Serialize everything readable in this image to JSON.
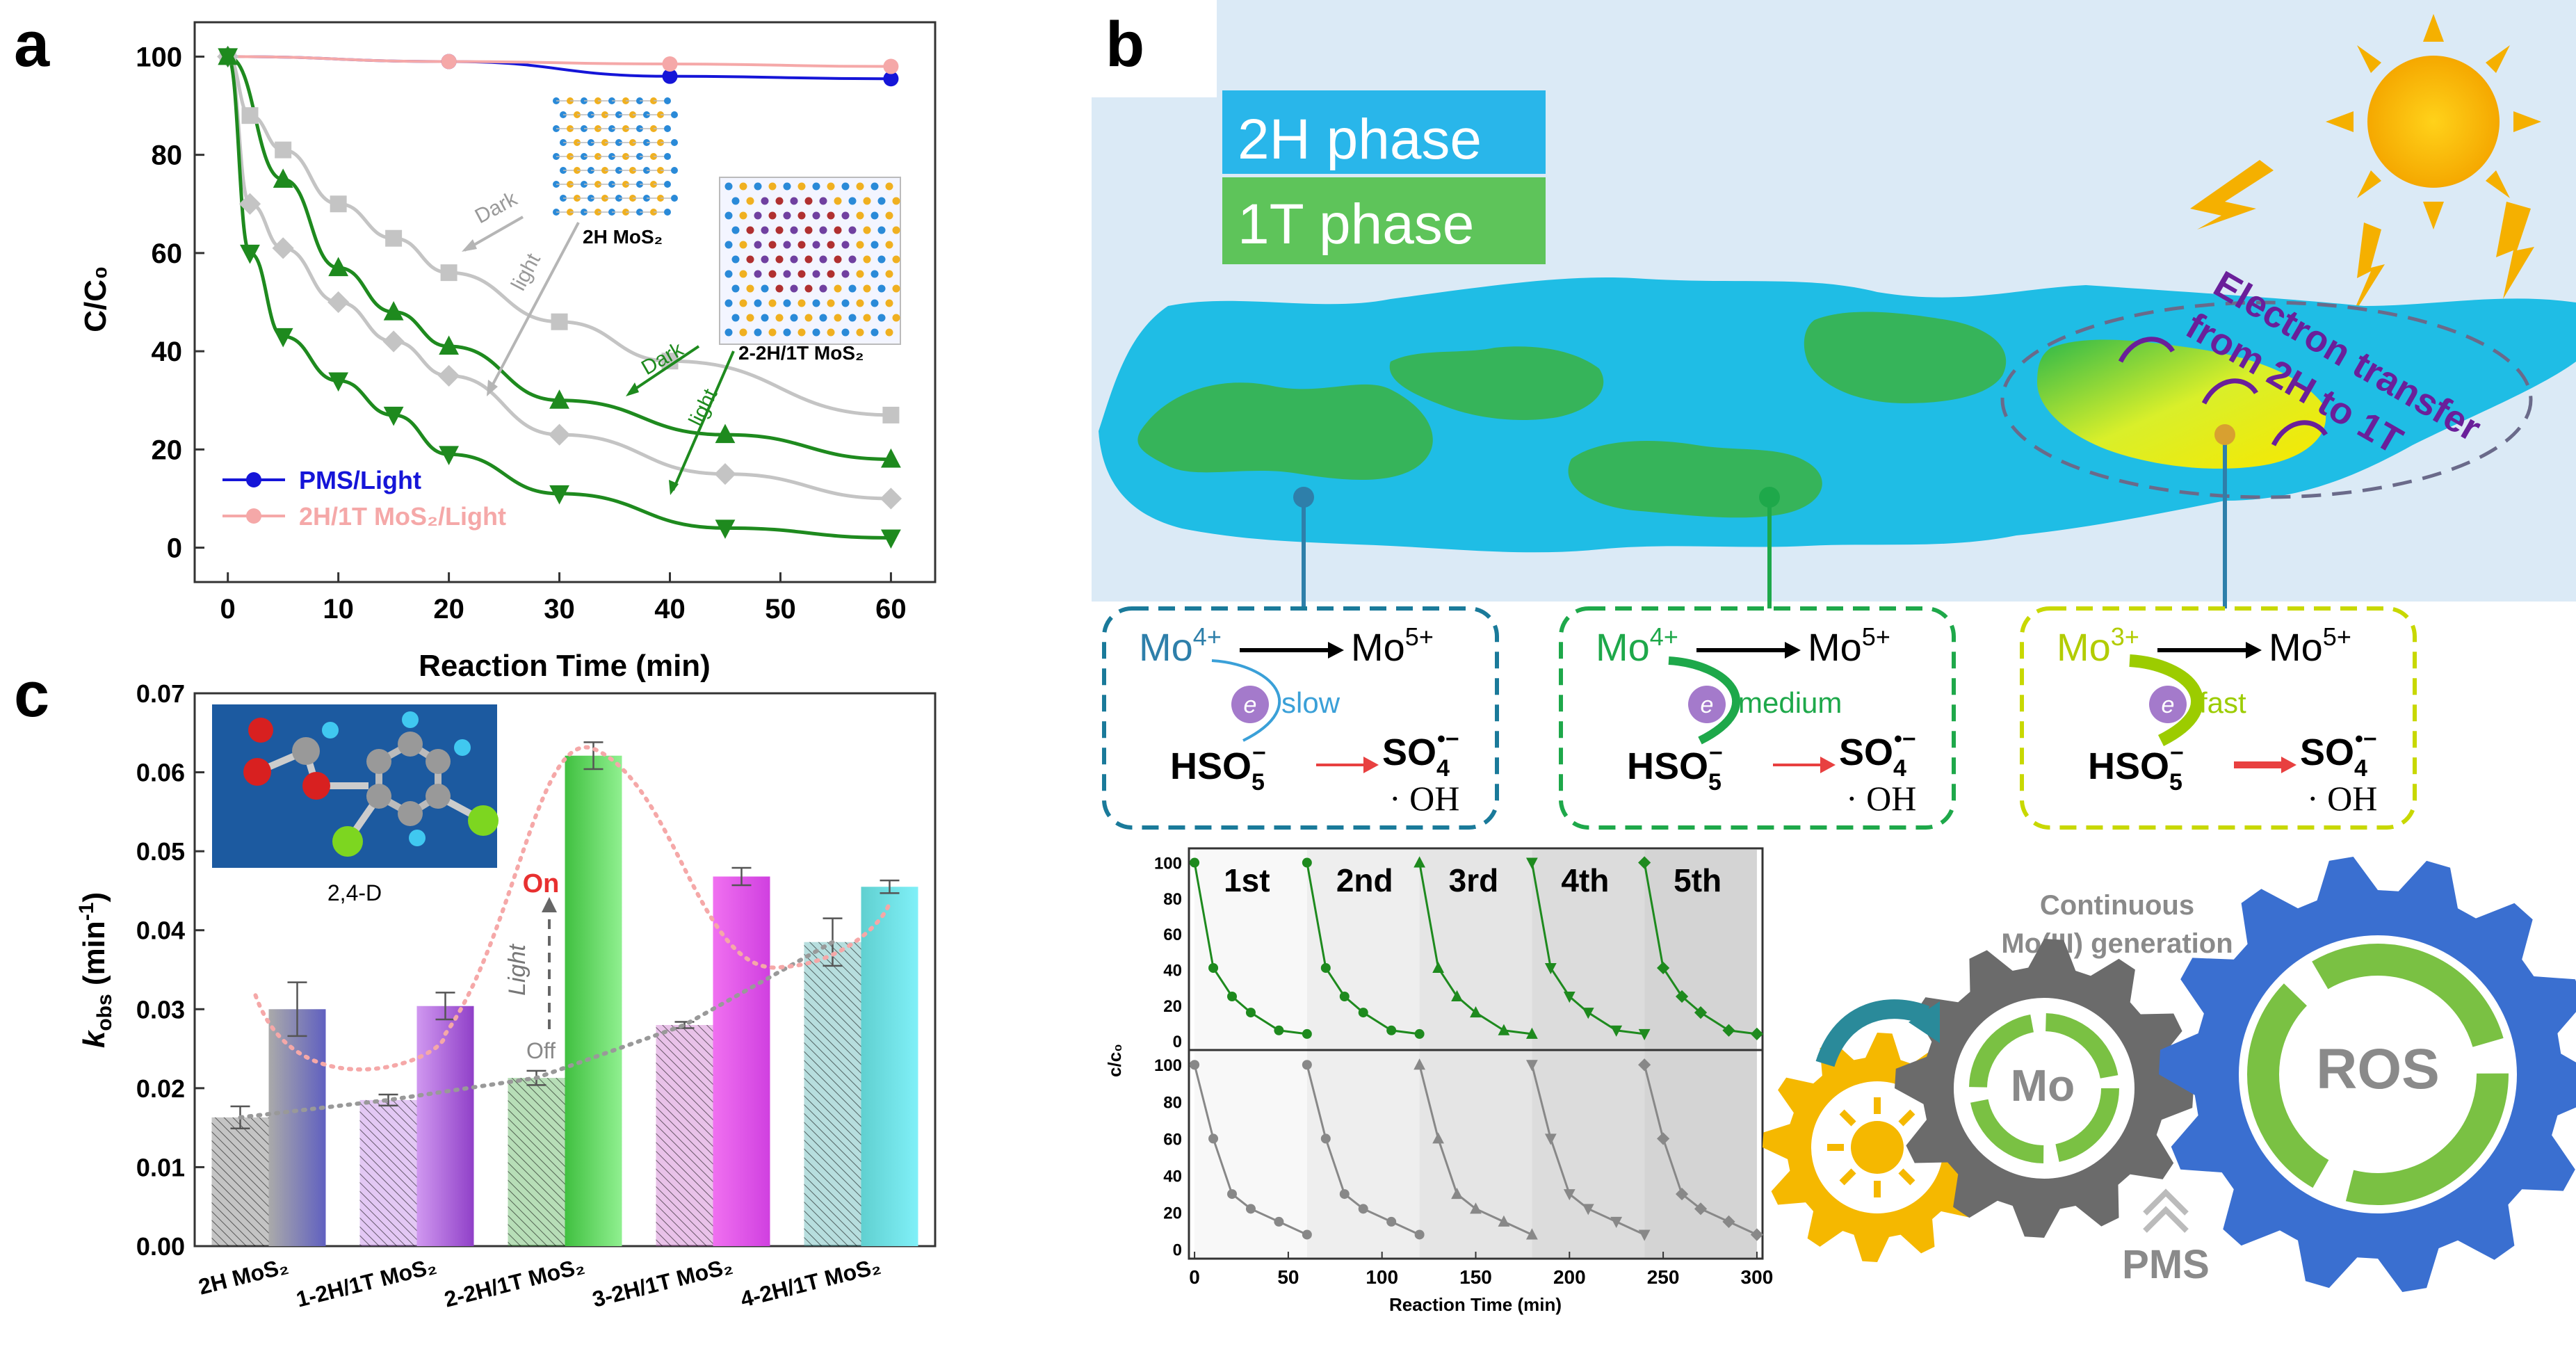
{
  "panels": {
    "a": "a",
    "b": "b",
    "c": "c"
  },
  "chart_data": [
    {
      "panel": "a",
      "type": "line",
      "xlabel": "Reaction Time (min)",
      "ylabel": "C/C₀",
      "xlim": [
        -3,
        64
      ],
      "ylim": [
        -7,
        107
      ],
      "xticks": [
        0,
        10,
        20,
        30,
        40,
        50,
        60
      ],
      "yticks": [
        0,
        20,
        40,
        60,
        80,
        100
      ],
      "series": [
        {
          "name": "PMS/Light",
          "color": "#1515d8",
          "marker": "circle",
          "x": [
            0,
            20,
            40,
            60
          ],
          "y": [
            100,
            99,
            96,
            95.5
          ]
        },
        {
          "name": "2H/1T MoS₂/Light",
          "color": "#f5a8a8",
          "marker": "circle",
          "x": [
            0,
            20,
            40,
            60
          ],
          "y": [
            100,
            99,
            98.5,
            98
          ]
        },
        {
          "name": "2H MoS₂ Dark",
          "color": "#c4c4c4",
          "marker": "square",
          "x": [
            0,
            2,
            5,
            10,
            15,
            20,
            30,
            40,
            60
          ],
          "y": [
            100,
            88,
            81,
            70,
            63,
            56,
            46,
            38,
            27
          ]
        },
        {
          "name": "2H MoS₂ light",
          "color": "#c4c4c4",
          "marker": "diamond",
          "x": [
            0,
            2,
            5,
            10,
            15,
            20,
            30,
            45,
            60
          ],
          "y": [
            100,
            70,
            61,
            50,
            42,
            35,
            23,
            15,
            10
          ]
        },
        {
          "name": "2-2H/1T MoS₂ Dark",
          "color": "#1e8a1e",
          "marker": "triangle-up",
          "x": [
            0,
            5,
            10,
            15,
            20,
            30,
            45,
            60
          ],
          "y": [
            100,
            75,
            57,
            48,
            41,
            30,
            23,
            18
          ]
        },
        {
          "name": "2-2H/1T MoS₂ light",
          "color": "#1e8a1e",
          "marker": "triangle-down",
          "x": [
            0,
            2,
            5,
            10,
            15,
            20,
            30,
            45,
            60
          ],
          "y": [
            100,
            60,
            43,
            34,
            27,
            19,
            11,
            4,
            2
          ]
        }
      ],
      "annotations": [
        "Dark",
        "light",
        "2H MoS₂",
        "Dark",
        "light",
        "2-2H/1T MoS₂"
      ]
    },
    {
      "panel": "c",
      "type": "bar",
      "ylabel_main": "k",
      "ylabel_sub": "obs",
      "ylabel_unit": " (min",
      "ylabel_sup": "-1",
      "ylabel_close": ")",
      "categories": [
        "2H MoS₂",
        "1-2H/1T MoS₂",
        "2-2H/1T MoS₂",
        "3-2H/1T MoS₂",
        "4-2H/1T MoS₂"
      ],
      "ylim": [
        0,
        0.07
      ],
      "yticks": [
        "0.00",
        "0.01",
        "0.02",
        "0.03",
        "0.04",
        "0.05",
        "0.06",
        "0.07"
      ],
      "series": [
        {
          "name": "Off (dark)",
          "values": [
            0.0163,
            0.0185,
            0.0213,
            0.028,
            0.0385
          ],
          "errors": [
            0.0014,
            0.0007,
            0.0009,
            0.0004,
            0.003
          ]
        },
        {
          "name": "On (light)",
          "values": [
            0.03,
            0.0304,
            0.0621,
            0.0468,
            0.0455
          ],
          "errors": [
            0.0034,
            0.0017,
            0.0017,
            0.0011,
            0.0008
          ]
        }
      ],
      "colors_off": [
        "#555555",
        "#b060e0",
        "#30a030",
        "#c050c0",
        "#30a0a0"
      ],
      "colors_on": [
        [
          "#aaaaaa",
          "#6060c0"
        ],
        [
          "#d098f0",
          "#9040c8"
        ],
        [
          "#40c040",
          "#90f090"
        ],
        [
          "#f070f0",
          "#d040e0"
        ],
        [
          "#60d0d0",
          "#80f0f8"
        ]
      ],
      "annotations": {
        "on": "On",
        "off": "Off",
        "light": "Light",
        "molecule": "2,4-D"
      }
    },
    {
      "panel": "b-inset",
      "type": "line",
      "xlabel": "Reaction Time (min)",
      "ylabel": "c/c₀",
      "xlim": [
        -3,
        303
      ],
      "ylim": [
        -5,
        108
      ],
      "xticks": [
        0,
        50,
        100,
        150,
        200,
        250,
        300
      ],
      "yticks": [
        0,
        20,
        40,
        60,
        80,
        100
      ],
      "cycles": [
        "1st",
        "2nd",
        "3rd",
        "4th",
        "5th"
      ],
      "cycle_markers": [
        "circle",
        "circle",
        "triangle-up",
        "triangle-down",
        "diamond"
      ],
      "top_series_color": "#1e8a1e",
      "bottom_series_color": "#888888",
      "top_cycle": {
        "t": [
          0,
          10,
          20,
          30,
          45,
          60
        ],
        "y": [
          100,
          41,
          25,
          16,
          6,
          4
        ]
      },
      "bottom_cycle": {
        "t": [
          0,
          10,
          20,
          30,
          45,
          60
        ],
        "y": [
          100,
          60,
          30,
          22,
          15,
          8
        ]
      }
    }
  ],
  "panel_a": {
    "legend": [
      "PMS/Light",
      "2H/1T MoS₂/Light"
    ]
  },
  "panel_b": {
    "phase_2h": "2H phase",
    "phase_1t": "1T phase",
    "transfer": [
      "Electron transfer",
      "from 2H to 1T"
    ],
    "boxes": [
      {
        "from": "Mo",
        "from_sup": "4+",
        "to": "Mo",
        "to_sup": "5+",
        "speed": "slow",
        "color": "#1a7a9a",
        "text_color": "#2e7faa",
        "speed_color": "#3aa0d8"
      },
      {
        "from": "Mo",
        "from_sup": "4+",
        "to": "Mo",
        "to_sup": "5+",
        "speed": "medium",
        "color": "#1ea84a",
        "text_color": "#1ea84a",
        "speed_color": "#1ea84a"
      },
      {
        "from": "Mo",
        "from_sup": "3+",
        "to": "Mo",
        "to_sup": "5+",
        "speed": "fast",
        "color": "#c8d800",
        "text_color": "#b2cc00",
        "speed_color": "#9ccc00"
      }
    ],
    "electron": "e",
    "hso": "HSO",
    "hso_sub": "5",
    "hso_sup": "−",
    "so": "SO",
    "so_sub": "4",
    "so_sup": "•−",
    "oh": "· OH",
    "gears": {
      "title": [
        "Continuous",
        "Mo(III) generation"
      ],
      "mo": "Mo",
      "ros": "ROS",
      "pms": "PMS"
    }
  }
}
